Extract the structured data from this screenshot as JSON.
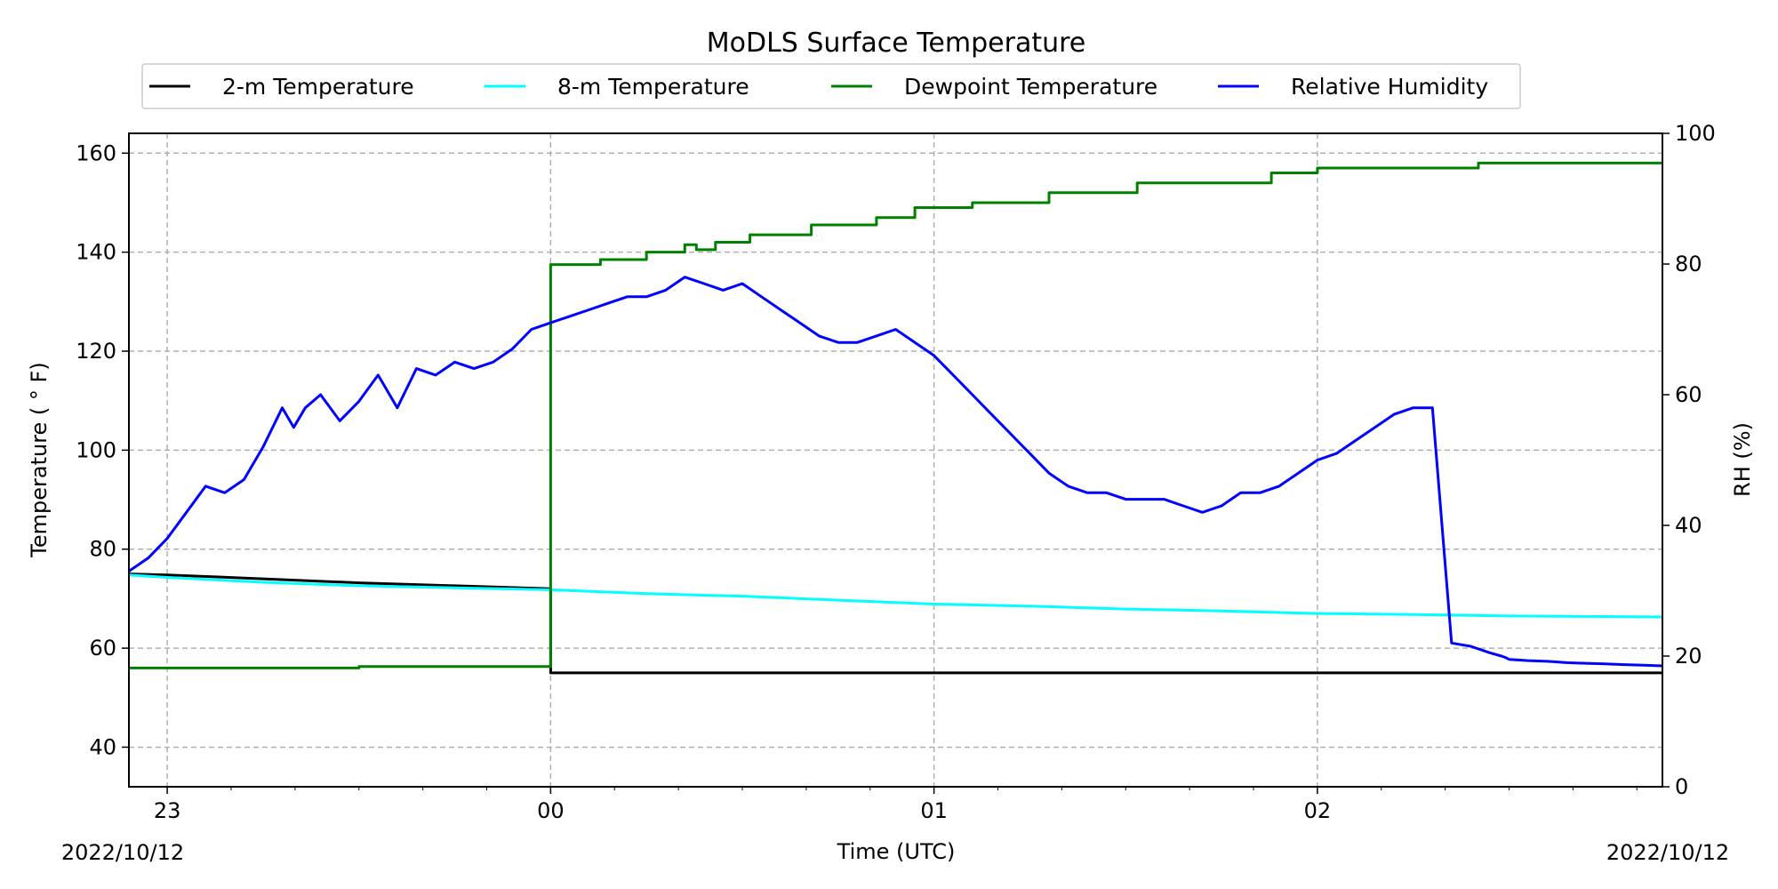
{
  "chart_data": {
    "type": "line",
    "title": "MoDLS Surface Temperature",
    "xlabel": "Time (UTC)",
    "ylabel": "Temperature ($^\\circ$F)",
    "ylabel_display": "Temperature ( ° F)",
    "y2label": "RH (%)",
    "date_left": "2022/10/12",
    "date_right": "2022/10/12",
    "x_unit": "hours UTC",
    "xlim": [
      22.9,
      26.9
    ],
    "x_ticks": [
      {
        "value": 23,
        "label": "23"
      },
      {
        "value": 24,
        "label": "00"
      },
      {
        "value": 25,
        "label": "01"
      },
      {
        "value": 26,
        "label": "02"
      }
    ],
    "ylim": [
      32,
      164
    ],
    "y_ticks": [
      40,
      60,
      80,
      100,
      120,
      140,
      160
    ],
    "y2lim": [
      0,
      100
    ],
    "y2_ticks": [
      0,
      20,
      40,
      60,
      80,
      100
    ],
    "grid": true,
    "legend_position": "top",
    "series": [
      {
        "name": "2-m Temperature",
        "color": "#000000",
        "axis": "left",
        "step": false,
        "x": [
          22.9,
          23.0,
          23.25,
          23.5,
          23.75,
          24.0,
          24.0,
          24.5,
          25.0,
          25.5,
          26.0,
          26.5,
          26.9
        ],
        "y": [
          75,
          74.8,
          74,
          73.2,
          72.6,
          72,
          55,
          55,
          55,
          55,
          55,
          55,
          55
        ]
      },
      {
        "name": "8-m Temperature",
        "color": "#00ffff",
        "axis": "left",
        "step": false,
        "x": [
          22.9,
          23.0,
          23.25,
          23.5,
          23.75,
          24.0,
          24.25,
          24.5,
          24.75,
          25.0,
          25.25,
          25.5,
          25.75,
          26.0,
          26.25,
          26.5,
          26.75,
          26.9
        ],
        "y": [
          74.8,
          74.3,
          73.3,
          72.6,
          72.2,
          71.8,
          71,
          70.5,
          69.7,
          68.9,
          68.5,
          67.9,
          67.5,
          67,
          66.8,
          66.5,
          66.4,
          66.3
        ]
      },
      {
        "name": "Dewpoint Temperature",
        "color": "#008000",
        "axis": "left",
        "step": true,
        "x": [
          22.9,
          23.5,
          24.0,
          24.0,
          24.13,
          24.25,
          24.35,
          24.38,
          24.43,
          24.52,
          24.68,
          24.85,
          24.95,
          25.1,
          25.3,
          25.53,
          25.88,
          26.0,
          26.42,
          26.9
        ],
        "y": [
          56,
          56.3,
          56.5,
          137.5,
          138.5,
          140,
          141.5,
          140.5,
          142,
          143.5,
          145.5,
          147,
          149,
          150,
          152,
          154,
          156,
          157,
          158,
          158
        ]
      },
      {
        "name": "Relative Humidity",
        "color": "#0000ff",
        "axis": "right",
        "step": false,
        "x": [
          22.9,
          22.95,
          23.0,
          23.05,
          23.1,
          23.15,
          23.2,
          23.25,
          23.3,
          23.33,
          23.36,
          23.4,
          23.45,
          23.5,
          23.55,
          23.6,
          23.65,
          23.7,
          23.75,
          23.8,
          23.85,
          23.9,
          23.95,
          24.0,
          24.05,
          24.1,
          24.15,
          24.2,
          24.25,
          24.3,
          24.35,
          24.4,
          24.45,
          24.5,
          24.55,
          24.6,
          24.65,
          24.7,
          24.75,
          24.8,
          24.85,
          24.9,
          24.95,
          25.0,
          25.05,
          25.1,
          25.15,
          25.2,
          25.25,
          25.3,
          25.35,
          25.4,
          25.45,
          25.5,
          25.55,
          25.6,
          25.65,
          25.7,
          25.75,
          25.8,
          25.85,
          25.9,
          25.95,
          26.0,
          26.05,
          26.1,
          26.15,
          26.2,
          26.25,
          26.3,
          26.35,
          26.4,
          26.45,
          26.48,
          26.49,
          26.5,
          26.55,
          26.6,
          26.65,
          26.7,
          26.75,
          26.8,
          26.85,
          26.9
        ],
        "y": [
          33,
          35,
          38,
          42,
          46,
          45,
          47,
          52,
          58,
          55,
          58,
          60,
          56,
          59,
          63,
          58,
          64,
          63,
          65,
          64,
          65,
          67,
          70,
          71,
          72,
          73,
          74,
          75,
          75,
          76,
          78,
          77,
          76,
          77,
          75,
          73,
          71,
          69,
          68,
          68,
          69,
          70,
          68,
          66,
          63,
          60,
          57,
          54,
          51,
          48,
          46,
          45,
          45,
          44,
          44,
          44,
          43,
          42,
          43,
          45,
          45,
          46,
          48,
          50,
          51,
          53,
          55,
          57,
          58,
          58,
          22,
          21.5,
          20.5,
          20,
          19.8,
          19.5,
          19.3,
          19.2,
          19.0,
          18.9,
          18.8,
          18.7,
          18.6,
          18.5
        ]
      }
    ]
  }
}
